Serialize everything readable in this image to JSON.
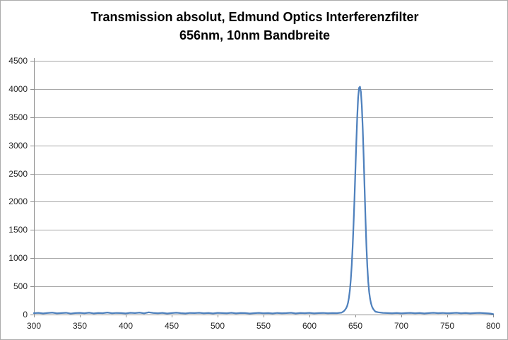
{
  "title": {
    "line1": "Transmission absolut, Edmund Optics Interferenzfilter",
    "line2": "656nm, 10nm Bandbreite"
  },
  "colors": {
    "series": "#4F81BD",
    "gridline": "#A6A6A6",
    "axis": "#8C8C8C",
    "tick_label": "#262626",
    "background": "#FFFFFF",
    "border": "#ABABAB"
  },
  "chart_data": {
    "type": "line",
    "title": "Transmission absolut, Edmund Optics Interferenzfilter 656nm, 10nm Bandbreite",
    "xlabel": "",
    "ylabel": "",
    "xlim": [
      300,
      800
    ],
    "ylim": [
      0,
      4500
    ],
    "x_ticks": [
      300,
      350,
      400,
      450,
      500,
      550,
      600,
      650,
      700,
      750,
      800
    ],
    "y_ticks": [
      0,
      500,
      1000,
      1500,
      2000,
      2500,
      3000,
      3500,
      4000,
      4500
    ],
    "grid": "horizontal",
    "legend": "none",
    "peak": {
      "center_nm": 655,
      "peak_value": 4040,
      "fwhm_nm": 10
    },
    "series": [
      {
        "name": "Transmission absolut",
        "points": [
          [
            300,
            25
          ],
          [
            305,
            30
          ],
          [
            310,
            20
          ],
          [
            315,
            28
          ],
          [
            320,
            35
          ],
          [
            325,
            22
          ],
          [
            330,
            27
          ],
          [
            335,
            32
          ],
          [
            340,
            18
          ],
          [
            345,
            26
          ],
          [
            350,
            30
          ],
          [
            355,
            24
          ],
          [
            360,
            33
          ],
          [
            365,
            21
          ],
          [
            370,
            28
          ],
          [
            375,
            25
          ],
          [
            380,
            36
          ],
          [
            385,
            23
          ],
          [
            390,
            29
          ],
          [
            395,
            27
          ],
          [
            400,
            20
          ],
          [
            405,
            31
          ],
          [
            410,
            26
          ],
          [
            415,
            34
          ],
          [
            420,
            22
          ],
          [
            425,
            40
          ],
          [
            430,
            28
          ],
          [
            435,
            24
          ],
          [
            440,
            30
          ],
          [
            445,
            19
          ],
          [
            450,
            27
          ],
          [
            455,
            33
          ],
          [
            460,
            25
          ],
          [
            465,
            21
          ],
          [
            470,
            29
          ],
          [
            475,
            26
          ],
          [
            480,
            32
          ],
          [
            485,
            23
          ],
          [
            490,
            28
          ],
          [
            495,
            20
          ],
          [
            500,
            30
          ],
          [
            505,
            27
          ],
          [
            510,
            24
          ],
          [
            515,
            31
          ],
          [
            520,
            22
          ],
          [
            525,
            28
          ],
          [
            530,
            26
          ],
          [
            535,
            19
          ],
          [
            540,
            25
          ],
          [
            545,
            30
          ],
          [
            550,
            23
          ],
          [
            555,
            27
          ],
          [
            560,
            21
          ],
          [
            565,
            29
          ],
          [
            570,
            24
          ],
          [
            575,
            26
          ],
          [
            580,
            32
          ],
          [
            585,
            20
          ],
          [
            590,
            28
          ],
          [
            595,
            25
          ],
          [
            600,
            30
          ],
          [
            605,
            22
          ],
          [
            610,
            26
          ],
          [
            615,
            29
          ],
          [
            620,
            23
          ],
          [
            625,
            27
          ],
          [
            630,
            25
          ],
          [
            635,
            35
          ],
          [
            636,
            45
          ],
          [
            637,
            55
          ],
          [
            638,
            70
          ],
          [
            639,
            90
          ],
          [
            640,
            115
          ],
          [
            641,
            150
          ],
          [
            642,
            210
          ],
          [
            643,
            300
          ],
          [
            644,
            430
          ],
          [
            645,
            620
          ],
          [
            646,
            870
          ],
          [
            647,
            1200
          ],
          [
            648,
            1600
          ],
          [
            649,
            2050
          ],
          [
            650,
            2550
          ],
          [
            651,
            3050
          ],
          [
            652,
            3500
          ],
          [
            653,
            3850
          ],
          [
            654,
            4020
          ],
          [
            655,
            4040
          ],
          [
            656,
            3950
          ],
          [
            657,
            3700
          ],
          [
            658,
            3300
          ],
          [
            659,
            2800
          ],
          [
            660,
            2250
          ],
          [
            661,
            1700
          ],
          [
            662,
            1220
          ],
          [
            663,
            850
          ],
          [
            664,
            580
          ],
          [
            665,
            400
          ],
          [
            666,
            280
          ],
          [
            667,
            200
          ],
          [
            668,
            145
          ],
          [
            669,
            110
          ],
          [
            670,
            85
          ],
          [
            671,
            65
          ],
          [
            672,
            50
          ],
          [
            675,
            40
          ],
          [
            680,
            30
          ],
          [
            685,
            27
          ],
          [
            690,
            24
          ],
          [
            695,
            28
          ],
          [
            700,
            22
          ],
          [
            705,
            26
          ],
          [
            710,
            30
          ],
          [
            715,
            24
          ],
          [
            720,
            28
          ],
          [
            725,
            21
          ],
          [
            730,
            27
          ],
          [
            735,
            32
          ],
          [
            740,
            25
          ],
          [
            745,
            29
          ],
          [
            750,
            23
          ],
          [
            755,
            27
          ],
          [
            760,
            31
          ],
          [
            765,
            24
          ],
          [
            770,
            28
          ],
          [
            775,
            22
          ],
          [
            780,
            26
          ],
          [
            785,
            30
          ],
          [
            790,
            25
          ],
          [
            795,
            20
          ],
          [
            798,
            15
          ],
          [
            800,
            8
          ]
        ]
      }
    ]
  }
}
